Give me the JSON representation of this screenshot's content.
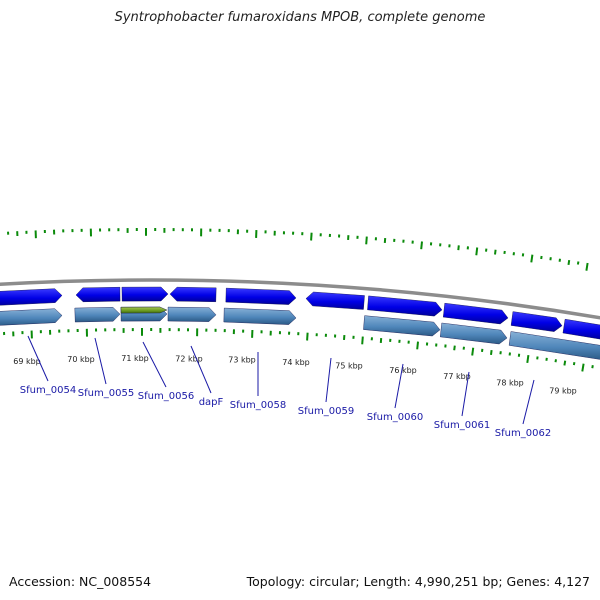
{
  "title": "Syntrophobacter fumaroxidans MPOB, complete genome",
  "footer": {
    "accession": "Accession: NC_008554",
    "summary": "Topology: circular; Length: 4,990,251 bp; Genes: 4,127"
  },
  "colors": {
    "backbone": "#8c8c8c",
    "forward_gene": "#0000ee",
    "reverse_gene": "#4a7fb5",
    "highlight_gene": "#6a9a20",
    "gc_ticks": "#0a8a0a",
    "label": "#1a1aa6"
  },
  "scale_labels": [
    "69 kbp",
    "70 kbp",
    "71 kbp",
    "72 kbp",
    "73 kbp",
    "74 kbp",
    "75 kbp",
    "76 kbp",
    "77 kbp",
    "78 kbp",
    "79 kbp"
  ],
  "gene_labels": [
    "Sfum_0054",
    "Sfum_0055",
    "Sfum_0056",
    "dapF",
    "Sfum_0058",
    "Sfum_0059",
    "Sfum_0060",
    "Sfum_0061",
    "Sfum_0062"
  ]
}
